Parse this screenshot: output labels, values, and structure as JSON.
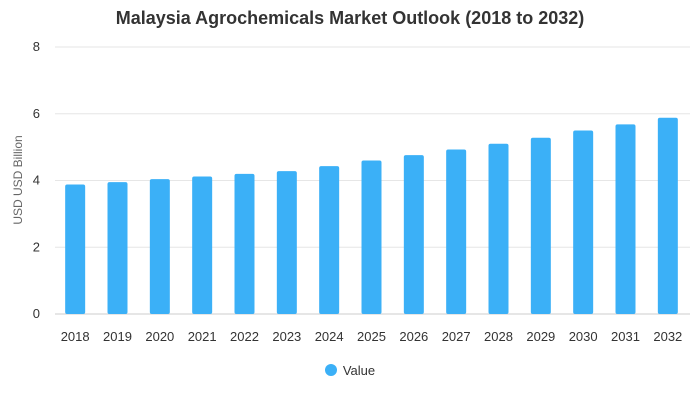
{
  "chart_data": {
    "type": "bar",
    "title": "Malaysia Agrochemicals Market Outlook (2018 to 2032)",
    "xlabel": "",
    "ylabel": "USD USD Billion",
    "categories": [
      "2018",
      "2019",
      "2020",
      "2021",
      "2022",
      "2023",
      "2024",
      "2025",
      "2026",
      "2027",
      "2028",
      "2029",
      "2030",
      "2031",
      "2032"
    ],
    "series": [
      {
        "name": "Value",
        "values": [
          3.88,
          3.95,
          4.04,
          4.12,
          4.2,
          4.28,
          4.43,
          4.6,
          4.76,
          4.93,
          5.1,
          5.28,
          5.5,
          5.68,
          5.88
        ]
      }
    ],
    "ylim": [
      0,
      8
    ],
    "yticks": [
      "0",
      "2",
      "4",
      "6",
      "8"
    ],
    "grid": true,
    "legend": "bottom-center"
  },
  "colors": {
    "bar": "#3bb0f7",
    "grid": "#e6e6e6",
    "axis_text": "#333333"
  }
}
